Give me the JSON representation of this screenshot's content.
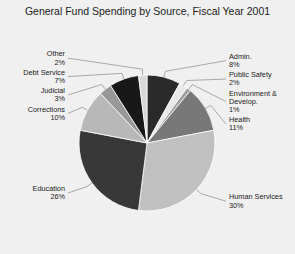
{
  "chart_data": {
    "type": "pie",
    "title": "General Fund Spending by Source, Fiscal Year 2001",
    "categories": [
      "Admin.\n8%",
      "Public Safety\n2%",
      "Environment &\nDevelop.\n1%",
      "Health\n11%",
      "Human Services\n30%",
      "Education\n26%",
      "Corrections\n10%",
      "Judicial\n3%",
      "Debt Service\n7%",
      "Other\n2%"
    ],
    "values": [
      8,
      2,
      1,
      11,
      30,
      26,
      10,
      3,
      7,
      2
    ],
    "colors": [
      "#2a2a2a",
      "#e8e8e8",
      "#a0a0a0",
      "#787878",
      "#c0c0c0",
      "#383838",
      "#b8b8b8",
      "#989898",
      "#181818",
      "#d8d8d8"
    ]
  }
}
